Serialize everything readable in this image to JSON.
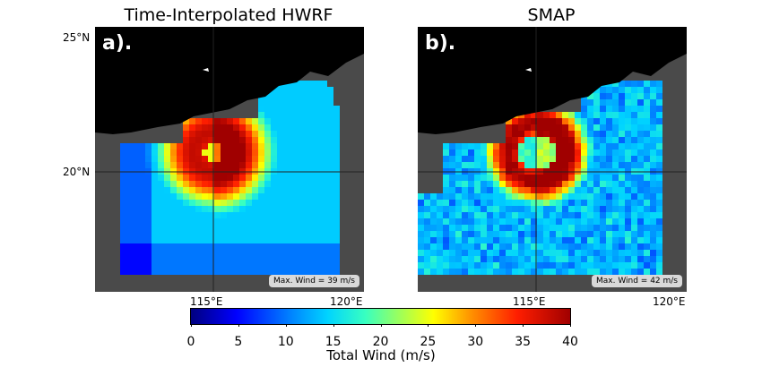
{
  "panels": [
    {
      "title": "Time-Interpolated HWRF",
      "letter": "a).",
      "max_wind": "Max. Wind = 39 m/s"
    },
    {
      "title": "SMAP",
      "letter": "b).",
      "max_wind": "Max. Wind = 42 m/s"
    }
  ],
  "lat_ticks": [
    "25°N",
    "20°N"
  ],
  "lon_ticks": [
    "115°E",
    "120°E"
  ],
  "colorbar": {
    "ticks": [
      "0",
      "5",
      "10",
      "15",
      "20",
      "25",
      "30",
      "35",
      "40"
    ],
    "label": "Total Wind (m/s)",
    "min": 0,
    "max": 40,
    "colors": [
      "#00007f",
      "#0000ff",
      "#0080ff",
      "#00d4ff",
      "#38ffc0",
      "#a8ff50",
      "#ffff00",
      "#ff9000",
      "#ff1e00",
      "#a00000"
    ]
  },
  "colors": {
    "land": "#000000",
    "ocean_nodata": "#4a4a4a",
    "grid": "#222222"
  }
}
